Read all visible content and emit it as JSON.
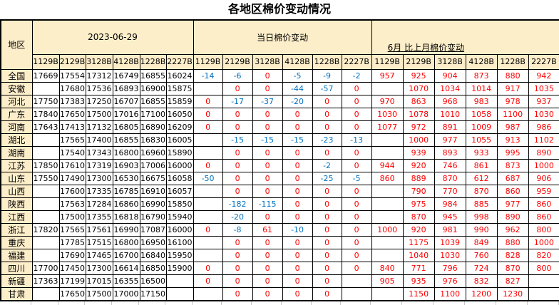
{
  "title": "各地区棉价变动情况",
  "header": {
    "region": "地区",
    "groups": [
      {
        "label": "2023-06-29"
      },
      {
        "label": "当日棉价变动"
      },
      {
        "label": "6月 比上月棉价变动"
      }
    ],
    "subcolumns": [
      "1129B",
      "2129B",
      "3128B",
      "4128B",
      "1228B",
      "2227B"
    ]
  },
  "colors": {
    "header_bg": "#FDEECA",
    "price_text": "#000000",
    "positive_change": "#FE0000",
    "negative_change": "#0070C0",
    "border": "#000000"
  },
  "rows": [
    {
      "region": "全国",
      "prices": [
        "17669",
        "17554",
        "17312",
        "16749",
        "16855",
        "16024"
      ],
      "daily": [
        "-14",
        "-6",
        "0",
        "-5",
        "-9",
        "-2"
      ],
      "monthly": [
        "957",
        "925",
        "904",
        "873",
        "880",
        "942"
      ]
    },
    {
      "region": "安徽",
      "prices": [
        "",
        "17680",
        "17536",
        "16893",
        "16900",
        "15875"
      ],
      "daily": [
        "",
        "0",
        "0",
        "-44",
        "-57",
        "0"
      ],
      "monthly": [
        "",
        "1070",
        "1034",
        "1014",
        "917",
        "1035"
      ]
    },
    {
      "region": "河北",
      "prices": [
        "17750",
        "17383",
        "17250",
        "16707",
        "16855",
        "15859"
      ],
      "daily": [
        "0",
        "-17",
        "-37",
        "-20",
        "0",
        "0"
      ],
      "monthly": [
        "970",
        "863",
        "968",
        "983",
        "978",
        "937"
      ]
    },
    {
      "region": "广东",
      "prices": [
        "17840",
        "17650",
        "17500",
        "17016",
        "17100",
        "16050"
      ],
      "daily": [
        "0",
        "0",
        "0",
        "0",
        "0",
        "0"
      ],
      "monthly": [
        "1030",
        "1078",
        "1010",
        "1058",
        "1100",
        "1030"
      ]
    },
    {
      "region": "河南",
      "prices": [
        "17643",
        "17413",
        "17132",
        "16805",
        "16890",
        "16209"
      ],
      "daily": [
        "0",
        "0",
        "0",
        "0",
        "0",
        "0"
      ],
      "monthly": [
        "1077",
        "972",
        "891",
        "1009",
        "987",
        "986"
      ]
    },
    {
      "region": "湖北",
      "prices": [
        "",
        "17565",
        "17400",
        "16855",
        "16830",
        "16005"
      ],
      "daily": [
        "",
        "-15",
        "-15",
        "-15",
        "-23",
        "-13"
      ],
      "monthly": [
        "",
        "1000",
        "977",
        "1055",
        "913",
        "1102"
      ]
    },
    {
      "region": "湖南",
      "prices": [
        "",
        "17540",
        "17343",
        "16800",
        "16960",
        "15890"
      ],
      "daily": [
        "",
        "0",
        "0",
        "0",
        "0",
        "0"
      ],
      "monthly": [
        "",
        "939",
        "893",
        "933",
        "995",
        "890"
      ]
    },
    {
      "region": "江苏",
      "prices": [
        "17850",
        "17610",
        "17319",
        "16903",
        "17006",
        "16000"
      ],
      "daily": [
        "0",
        "0",
        "0",
        "0",
        "-2",
        "0"
      ],
      "monthly": [
        "944",
        "920",
        "746",
        "861",
        "873",
        "1000"
      ]
    },
    {
      "region": "山东",
      "prices": [
        "17550",
        "17490",
        "17300",
        "16530",
        "16675",
        "16058"
      ],
      "daily": [
        "-50",
        "0",
        "0",
        "0",
        "-25",
        "-5"
      ],
      "monthly": [
        "860",
        "889",
        "870",
        "612",
        "687",
        "906"
      ]
    },
    {
      "region": "山西",
      "prices": [
        "",
        "17600",
        "17335",
        "16785",
        "16910",
        "16057"
      ],
      "daily": [
        "",
        "0",
        "0",
        "0",
        "0",
        "0"
      ],
      "monthly": [
        "",
        "790",
        "770",
        "870",
        "860",
        "959"
      ]
    },
    {
      "region": "陕西",
      "prices": [
        "",
        "17563",
        "17284",
        "16860",
        "16990",
        "15850"
      ],
      "daily": [
        "",
        "-182",
        "-115",
        "0",
        "0",
        "0"
      ],
      "monthly": [
        "",
        "975",
        "984",
        "885",
        "977",
        "860"
      ]
    },
    {
      "region": "江西",
      "prices": [
        "",
        "17500",
        "17355",
        "16818",
        "16790",
        "15940"
      ],
      "daily": [
        "",
        "-20",
        "0",
        "0",
        "0",
        "0"
      ],
      "monthly": [
        "",
        "870",
        "945",
        "998",
        "890",
        "860"
      ]
    },
    {
      "region": "浙江",
      "prices": [
        "17820",
        "17565",
        "17561",
        "16990",
        "17087",
        "16000"
      ],
      "daily": [
        "0",
        "-8",
        "61",
        "-10",
        "0",
        "0"
      ],
      "monthly": [
        "1000",
        "920",
        "981",
        "990",
        "962",
        "800"
      ]
    },
    {
      "region": "重庆",
      "prices": [
        "",
        "17785",
        "17515",
        "16800",
        "16950",
        "16100"
      ],
      "daily": [
        "",
        "0",
        "0",
        "0",
        "0",
        "0"
      ],
      "monthly": [
        "",
        "1175",
        "1039",
        "849",
        "880",
        "1000"
      ]
    },
    {
      "region": "福建",
      "prices": [
        "",
        "17690",
        "17465",
        "16700",
        "16840",
        "15950"
      ],
      "daily": [
        "",
        "0",
        "0",
        "0",
        "0",
        "0"
      ],
      "monthly": [
        "",
        "1040",
        "1030",
        "760",
        "828",
        "820"
      ]
    },
    {
      "region": "四川",
      "prices": [
        "17700",
        "17450",
        "17300",
        "16614",
        "16850",
        "15900"
      ],
      "daily": [
        "0",
        "0",
        "0",
        "0",
        "0",
        "0"
      ],
      "monthly": [
        "840",
        "771",
        "796",
        "724",
        "870",
        "800"
      ]
    },
    {
      "region": "新疆",
      "prices": [
        "17363",
        "17199",
        "17015",
        "16355",
        "16500",
        ""
      ],
      "daily": [
        "0",
        "0",
        "0",
        "0",
        "0",
        ""
      ],
      "monthly": [
        "905",
        "935",
        "976",
        "832",
        "827",
        ""
      ]
    },
    {
      "region": "甘肃",
      "prices": [
        "",
        "17650",
        "17500",
        "17000",
        "17150",
        ""
      ],
      "daily": [
        "",
        "0",
        "0",
        "0",
        "0",
        ""
      ],
      "monthly": [
        "",
        "1150",
        "1100",
        "1200",
        "1230",
        ""
      ]
    }
  ]
}
